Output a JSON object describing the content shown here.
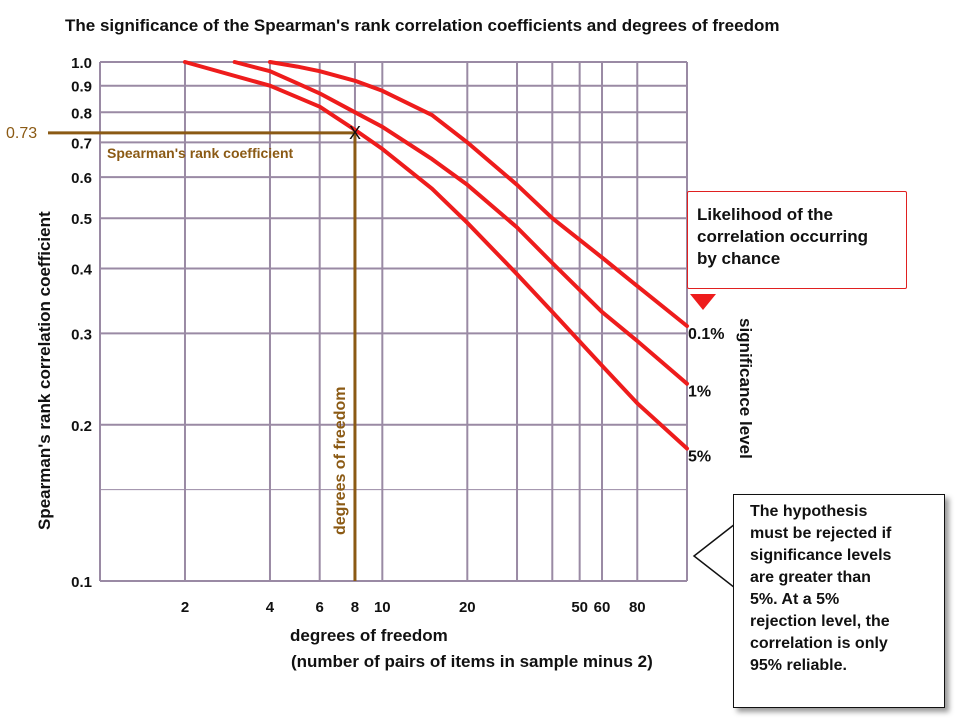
{
  "chart_data": {
    "type": "line",
    "title": "The significance of the Spearman's rank correlation coefficients and degrees of freedom",
    "xlabel": "degrees of freedom",
    "xlabel_sub": "(number of pairs of items in sample minus 2)",
    "ylabel": "Spearman's rank correlation coefficient",
    "x_scale": "log",
    "y_scale": "log",
    "xlim": [
      1,
      120
    ],
    "ylim": [
      0.1,
      1.0
    ],
    "grid": true,
    "y_ticks": [
      "0.1",
      "0.2",
      "0.3",
      "0.4",
      "0.5",
      "0.6",
      "0.7",
      "0.8",
      "0.9",
      "1.0"
    ],
    "x_ticks": [
      "2",
      "4",
      "6",
      "8",
      "10",
      "20",
      "50",
      "60",
      "80"
    ],
    "series": [
      {
        "name": "0.1%",
        "x": [
          4,
          5,
          6,
          8,
          10,
          15,
          20,
          30,
          40,
          60,
          80,
          120
        ],
        "values": [
          1.0,
          0.98,
          0.96,
          0.92,
          0.88,
          0.79,
          0.7,
          0.58,
          0.5,
          0.42,
          0.37,
          0.31
        ]
      },
      {
        "name": "1%",
        "x": [
          3,
          4,
          5,
          6,
          8,
          10,
          15,
          20,
          30,
          40,
          60,
          80,
          120
        ],
        "values": [
          1.0,
          0.96,
          0.91,
          0.87,
          0.8,
          0.75,
          0.65,
          0.58,
          0.48,
          0.41,
          0.33,
          0.29,
          0.24
        ]
      },
      {
        "name": "5%",
        "x": [
          2,
          4,
          6,
          8,
          10,
          15,
          20,
          30,
          40,
          60,
          80,
          120
        ],
        "values": [
          1.0,
          0.9,
          0.82,
          0.74,
          0.68,
          0.57,
          0.49,
          0.39,
          0.33,
          0.26,
          0.22,
          0.18
        ]
      }
    ],
    "marker": {
      "x": 8,
      "y": 0.73,
      "symbol": "X",
      "y_label": "0.73",
      "h_label": "Spearman's rank coefficient",
      "v_label": "degrees of freedom"
    },
    "side_label": "significance level",
    "colors": {
      "curve": "#ee1c1c",
      "guide": "#8b5a14",
      "grid": "#9a8aa4",
      "text": "#111111"
    }
  },
  "callouts": {
    "likelihood": [
      "Likelihood of the",
      "correlation occurring",
      "by chance"
    ],
    "rejection": [
      "The hypothesis",
      "must be rejected if",
      "significance levels",
      "are greater than",
      "5%. At a 5%",
      "rejection level, the",
      "correlation is only",
      "95% reliable."
    ]
  }
}
